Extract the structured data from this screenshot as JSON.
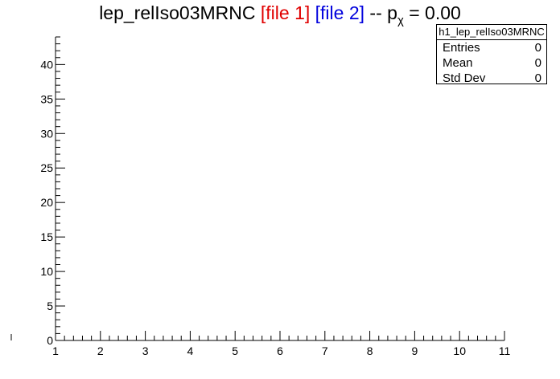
{
  "title": {
    "name": "lep_relIso03MRNC",
    "file1": "[file 1]",
    "file2": "[file 2]",
    "sep": "--",
    "p": "p",
    "chi": "χ",
    "pvalue": "= 0.00"
  },
  "stats_box": {
    "title": "h1_lep_relIso03MRNC",
    "rows": [
      {
        "label": "Entries",
        "value": "0"
      },
      {
        "label": "Mean",
        "value": "0"
      },
      {
        "label": "Std Dev",
        "value": "0"
      }
    ]
  },
  "colors": {
    "file1": "#e00000",
    "file2": "#0000dd",
    "axis": "#000000"
  },
  "chart_data": {
    "type": "bar",
    "title": "lep_relIso03MRNC [file 1] [file 2] -- pχ = 0.00",
    "xlabel": "",
    "ylabel": "",
    "xlim": [
      1,
      11
    ],
    "ylim": [
      0,
      44
    ],
    "x_ticks": [
      1,
      2,
      3,
      4,
      5,
      6,
      7,
      8,
      9,
      10,
      11
    ],
    "y_ticks": [
      0,
      5,
      10,
      15,
      20,
      25,
      30,
      35,
      40
    ],
    "series": [],
    "grid": false,
    "legend": "top-right"
  }
}
